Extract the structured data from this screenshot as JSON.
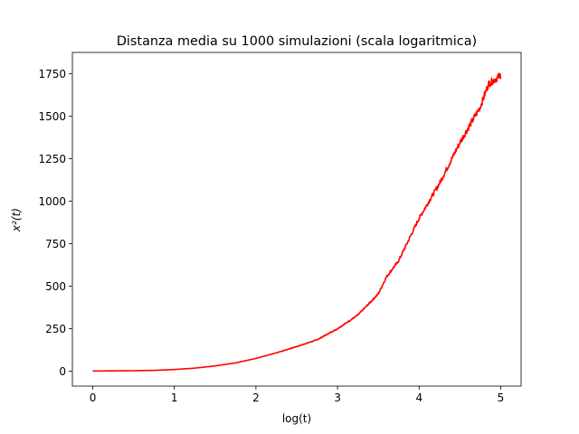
{
  "chart_data": {
    "type": "line",
    "title": "Distanza media su 1000 simulazioni (scala logaritmica)",
    "xlabel": "log(t)",
    "ylabel": "x²(t)",
    "xlim": [
      -0.25,
      5.25
    ],
    "ylim": [
      -87.5,
      1875
    ],
    "x_ticks": [
      0,
      1,
      2,
      3,
      4,
      5
    ],
    "y_ticks": [
      0,
      250,
      500,
      750,
      1000,
      1250,
      1500,
      1750
    ],
    "grid": false,
    "legend": "none",
    "series": [
      {
        "color": "#ff0000",
        "x": [
          0,
          0.25,
          0.5,
          0.75,
          1.0,
          1.25,
          1.5,
          1.75,
          2.0,
          2.25,
          2.5,
          2.75,
          3.0,
          3.25,
          3.5,
          3.6,
          3.75,
          4.0,
          4.25,
          4.5,
          4.75,
          4.85,
          5.0
        ],
        "y": [
          1,
          2,
          3,
          5,
          10,
          18,
          31,
          49,
          75,
          108,
          145,
          185,
          250,
          330,
          455,
          555,
          650,
          900,
          1105,
          1345,
          1555,
          1690,
          1740
        ]
      }
    ]
  }
}
